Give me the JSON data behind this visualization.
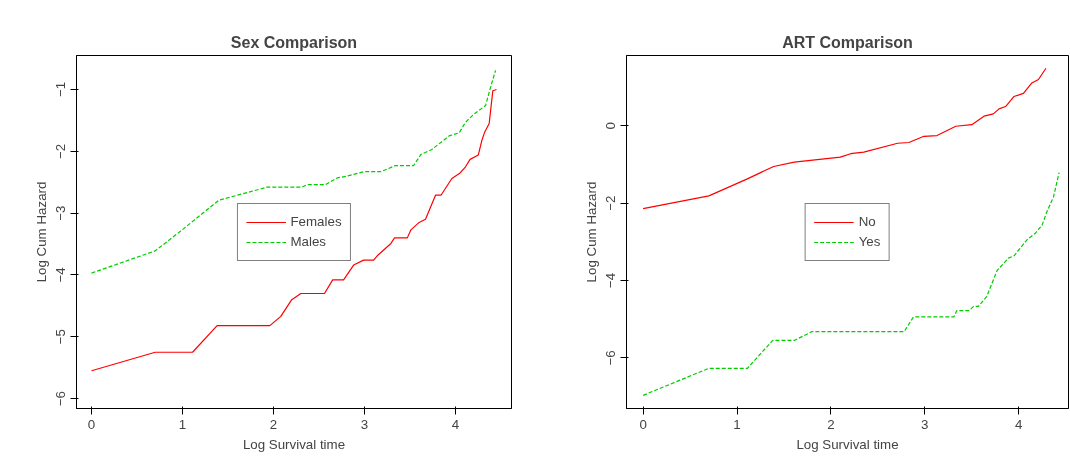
{
  "chart_data": [
    {
      "type": "line",
      "title": "Sex Comparison",
      "xlabel": "Log Survival time",
      "ylabel": "Log Cum Hazard",
      "xlim": [
        -0.165,
        4.615
      ],
      "ylim": [
        -6.16,
        -0.45
      ],
      "xticks": [
        0,
        1,
        2,
        3,
        4
      ],
      "yticks": [
        -6,
        -5,
        -4,
        -3,
        -2,
        -1
      ],
      "grid": false,
      "legend": "center",
      "marker": "none",
      "series": [
        {
          "name": "Females",
          "color": "#ff0000",
          "line_style": "solid",
          "x": [
            0,
            0.7,
            1.11,
            1.38,
            1.96,
            2.08,
            2.2,
            2.3,
            2.56,
            2.65,
            2.77,
            2.88,
            2.99,
            3.1,
            3.14,
            3.29,
            3.33,
            3.47,
            3.51,
            3.6,
            3.67,
            3.78,
            3.84,
            3.96,
            4.05,
            4.11,
            4.16,
            4.25,
            4.29,
            4.32,
            4.37,
            4.39,
            4.41,
            4.45
          ],
          "values": [
            -5.55,
            -5.25,
            -5.25,
            -4.82,
            -4.82,
            -4.67,
            -4.4,
            -4.3,
            -4.3,
            -4.08,
            -4.08,
            -3.84,
            -3.76,
            -3.76,
            -3.69,
            -3.49,
            -3.4,
            -3.4,
            -3.27,
            -3.15,
            -3.1,
            -2.71,
            -2.71,
            -2.44,
            -2.35,
            -2.25,
            -2.13,
            -2.06,
            -1.82,
            -1.69,
            -1.55,
            -1.28,
            -1.02,
            -1.0
          ]
        },
        {
          "name": "Males",
          "color": "#00cc00",
          "line_style": "dashed",
          "x": [
            0,
            0.7,
            0.98,
            1.4,
            1.93,
            2.31,
            2.37,
            2.57,
            2.7,
            2.81,
            2.99,
            3.18,
            3.34,
            3.54,
            3.62,
            3.74,
            3.93,
            4.04,
            4.11,
            4.2,
            4.33,
            4.38,
            4.44
          ],
          "values": [
            -3.97,
            -3.61,
            -3.29,
            -2.79,
            -2.58,
            -2.58,
            -2.54,
            -2.54,
            -2.43,
            -2.4,
            -2.33,
            -2.33,
            -2.23,
            -2.23,
            -2.05,
            -1.97,
            -1.75,
            -1.7,
            -1.53,
            -1.4,
            -1.26,
            -0.99,
            -0.69
          ]
        }
      ]
    },
    {
      "type": "line",
      "title": "ART Comparison",
      "xlabel": "Log Survival time",
      "ylabel": "Log Cum Hazard",
      "xlim": [
        -0.177,
        4.53
      ],
      "ylim": [
        -7.31,
        1.82
      ],
      "xticks": [
        0,
        1,
        2,
        3,
        4
      ],
      "yticks": [
        -6,
        -4,
        -2,
        0
      ],
      "grid": false,
      "legend": "center",
      "marker": "none",
      "series": [
        {
          "name": "No",
          "color": "#ff0000",
          "line_style": "solid",
          "x": [
            0,
            0.7,
            1.11,
            1.39,
            1.61,
            2.1,
            2.21,
            2.35,
            2.71,
            2.83,
            2.99,
            3.13,
            3.33,
            3.5,
            3.63,
            3.73,
            3.79,
            3.86,
            3.95,
            4.05,
            4.14,
            4.21,
            4.29
          ],
          "values": [
            -2.14,
            -1.81,
            -1.37,
            -1.05,
            -0.94,
            -0.81,
            -0.72,
            -0.68,
            -0.45,
            -0.43,
            -0.27,
            -0.25,
            -0.01,
            0.03,
            0.25,
            0.31,
            0.44,
            0.5,
            0.76,
            0.84,
            1.11,
            1.2,
            1.49
          ]
        },
        {
          "name": "Yes",
          "color": "#00cc00",
          "line_style": "dashed",
          "x": [
            0,
            0.7,
            1.11,
            1.38,
            1.61,
            1.8,
            2.78,
            2.88,
            3.31,
            3.34,
            3.47,
            3.52,
            3.57,
            3.66,
            3.77,
            3.89,
            3.95,
            4.09,
            4.18,
            4.25,
            4.3,
            4.37,
            4.43
          ],
          "values": [
            -6.97,
            -6.27,
            -6.27,
            -5.55,
            -5.55,
            -5.32,
            -5.32,
            -4.94,
            -4.94,
            -4.78,
            -4.78,
            -4.67,
            -4.67,
            -4.41,
            -3.74,
            -3.42,
            -3.36,
            -2.94,
            -2.77,
            -2.56,
            -2.22,
            -1.84,
            -1.21
          ]
        }
      ]
    }
  ]
}
